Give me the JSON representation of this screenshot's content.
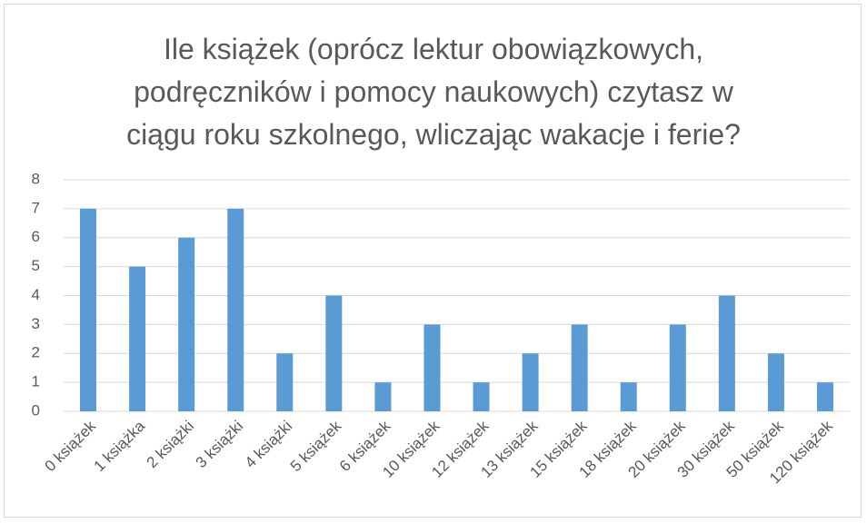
{
  "chart_data": {
    "type": "bar",
    "title": "Ile książek (oprócz lektur obowiązkowych, podręczników i pomocy naukowych) czytasz w ciągu roku szkolnego, wliczając wakacje i ferie?",
    "categories": [
      "0 książek",
      "1 książka",
      "2 książki",
      "3 książki",
      "4 książki",
      "5 książek",
      "6 książek",
      "10 książek",
      "12 książek",
      "13 książek",
      "15 książek",
      "18 książek",
      "20 książek",
      "30 książek",
      "50 książek",
      "120 książek"
    ],
    "values": [
      7,
      5,
      6,
      7,
      2,
      4,
      1,
      3,
      1,
      2,
      3,
      1,
      3,
      4,
      2,
      1
    ],
    "color": "#5b9bd5",
    "ylim": [
      0,
      8
    ],
    "yticks": [
      0,
      1,
      2,
      3,
      4,
      5,
      6,
      7,
      8
    ],
    "grid": true
  }
}
